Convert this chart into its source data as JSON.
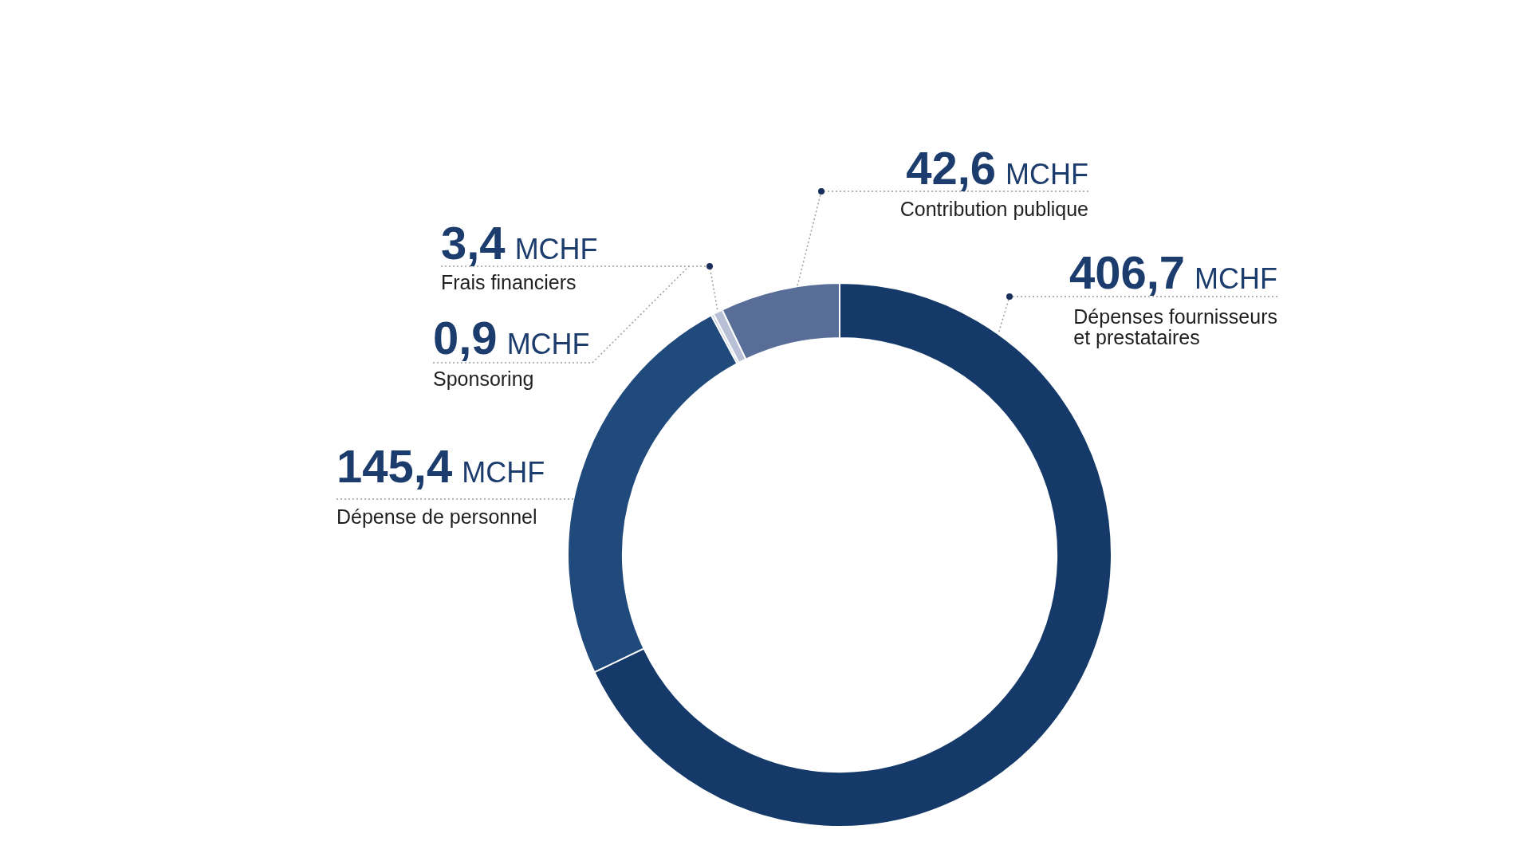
{
  "chart_data": {
    "type": "donut",
    "categories": [
      "Dépenses fournisseurs et prestataires",
      "Dépense de personnel",
      "Sponsoring",
      "Frais financiers",
      "Contribution publique"
    ],
    "values": [
      406.7,
      145.4,
      0.9,
      3.4,
      42.6
    ],
    "colors": [
      "#153a69",
      "#1f4a7b",
      "#b8c0d6",
      "#b8c0d6",
      "#586e98"
    ],
    "value_labels": [
      "406,7 MCHF",
      "145,4 MCHF",
      "0,9 MCHF",
      "3,4 MCHF",
      "42,6 MCHF"
    ]
  }
}
